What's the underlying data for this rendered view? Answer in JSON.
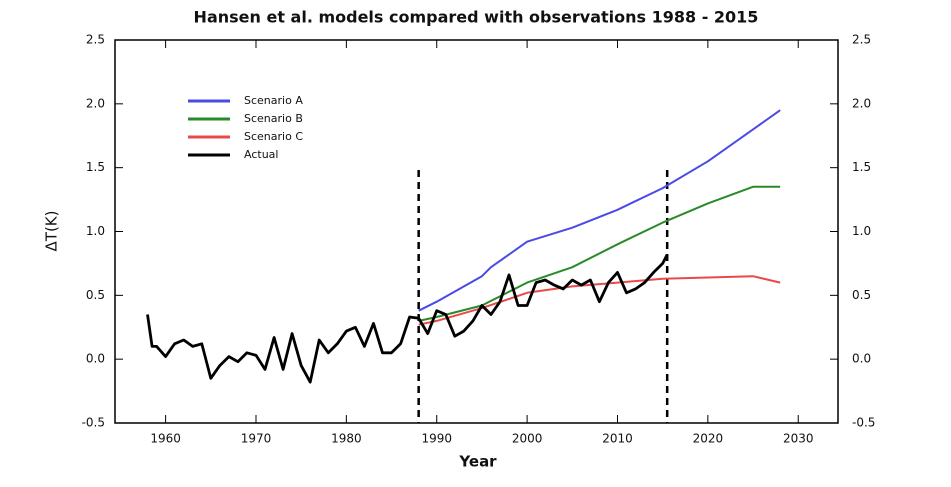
{
  "chart_data": {
    "type": "line",
    "title": "Hansen et al. models compared with observations 1988 - 2015",
    "xlabel": "Year",
    "ylabel": "ΔT(K)",
    "xlim": [
      1954.4,
      2034.4
    ],
    "xticks": [
      1960,
      1970,
      1980,
      1990,
      2000,
      2010,
      2020,
      2030
    ],
    "ylim": [
      -0.5,
      2.5
    ],
    "yticks": [
      {
        "value": -0.5,
        "label": "-0.5"
      },
      {
        "value": 0,
        "label": "0.0"
      },
      0.5,
      {
        "value": 1,
        "label": "1.0"
      },
      1.5,
      {
        "value": 2,
        "label": "2.0"
      },
      2.5
    ],
    "y2lim": [
      -0.5,
      2.5
    ],
    "y2ticks": [
      {
        "value": -0.5,
        "label": "-0.5"
      },
      {
        "value": 0,
        "label": "0.0"
      },
      0.5,
      {
        "value": 1,
        "label": "1.0"
      },
      1.5,
      {
        "value": 2,
        "label": "2.0"
      },
      2.5
    ],
    "vlines": [
      1988,
      2015.5
    ],
    "legend": "upper left",
    "series": [
      {
        "name": "Scenario A",
        "color": "#4a4ae6",
        "x": [
          1988,
          1990,
          1995,
          1996,
          2000,
          2005,
          2010,
          2015,
          2020,
          2025,
          2028
        ],
        "values": [
          0.38,
          0.45,
          0.65,
          0.72,
          0.92,
          1.03,
          1.17,
          1.34,
          1.55,
          1.8,
          1.95
        ]
      },
      {
        "name": "Scenario B",
        "color": "#2a8a2a",
        "x": [
          1988,
          1990,
          1995,
          2000,
          2005,
          2010,
          2015,
          2020,
          2025,
          2028
        ],
        "values": [
          0.3,
          0.33,
          0.42,
          0.6,
          0.72,
          0.9,
          1.07,
          1.22,
          1.35,
          1.35
        ]
      },
      {
        "name": "Scenario C",
        "color": "#e84a4a",
        "x": [
          1988,
          1990,
          1995,
          2000,
          2005,
          2010,
          2015,
          2020,
          2025,
          2028
        ],
        "values": [
          0.27,
          0.3,
          0.4,
          0.52,
          0.57,
          0.6,
          0.63,
          0.64,
          0.65,
          0.6
        ]
      },
      {
        "name": "Actual",
        "color": "#000000",
        "x": [
          1958,
          1958.5,
          1959,
          1960,
          1961,
          1962,
          1963,
          1964,
          1965,
          1966,
          1967,
          1968,
          1969,
          1970,
          1971,
          1972,
          1973,
          1974,
          1975,
          1976,
          1977,
          1978,
          1979,
          1980,
          1981,
          1982,
          1983,
          1984,
          1985,
          1986,
          1987,
          1988,
          1989,
          1990,
          1991,
          1992,
          1993,
          1994,
          1995,
          1996,
          1997,
          1998,
          1999,
          2000,
          2001,
          2002,
          2003,
          2004,
          2005,
          2006,
          2007,
          2008,
          2009,
          2010,
          2011,
          2012,
          2013,
          2014,
          2015,
          2015.5
        ],
        "values": [
          0.35,
          0.1,
          0.1,
          0.02,
          0.12,
          0.15,
          0.1,
          0.12,
          -0.15,
          -0.05,
          0.02,
          -0.02,
          0.05,
          0.03,
          -0.08,
          0.17,
          -0.08,
          0.2,
          -0.05,
          -0.18,
          0.15,
          0.05,
          0.12,
          0.22,
          0.25,
          0.1,
          0.28,
          0.05,
          0.05,
          0.12,
          0.33,
          0.32,
          0.2,
          0.38,
          0.35,
          0.18,
          0.22,
          0.3,
          0.42,
          0.35,
          0.45,
          0.66,
          0.42,
          0.42,
          0.6,
          0.62,
          0.58,
          0.55,
          0.62,
          0.58,
          0.62,
          0.45,
          0.6,
          0.68,
          0.52,
          0.55,
          0.6,
          0.68,
          0.75,
          0.82
        ]
      }
    ]
  }
}
